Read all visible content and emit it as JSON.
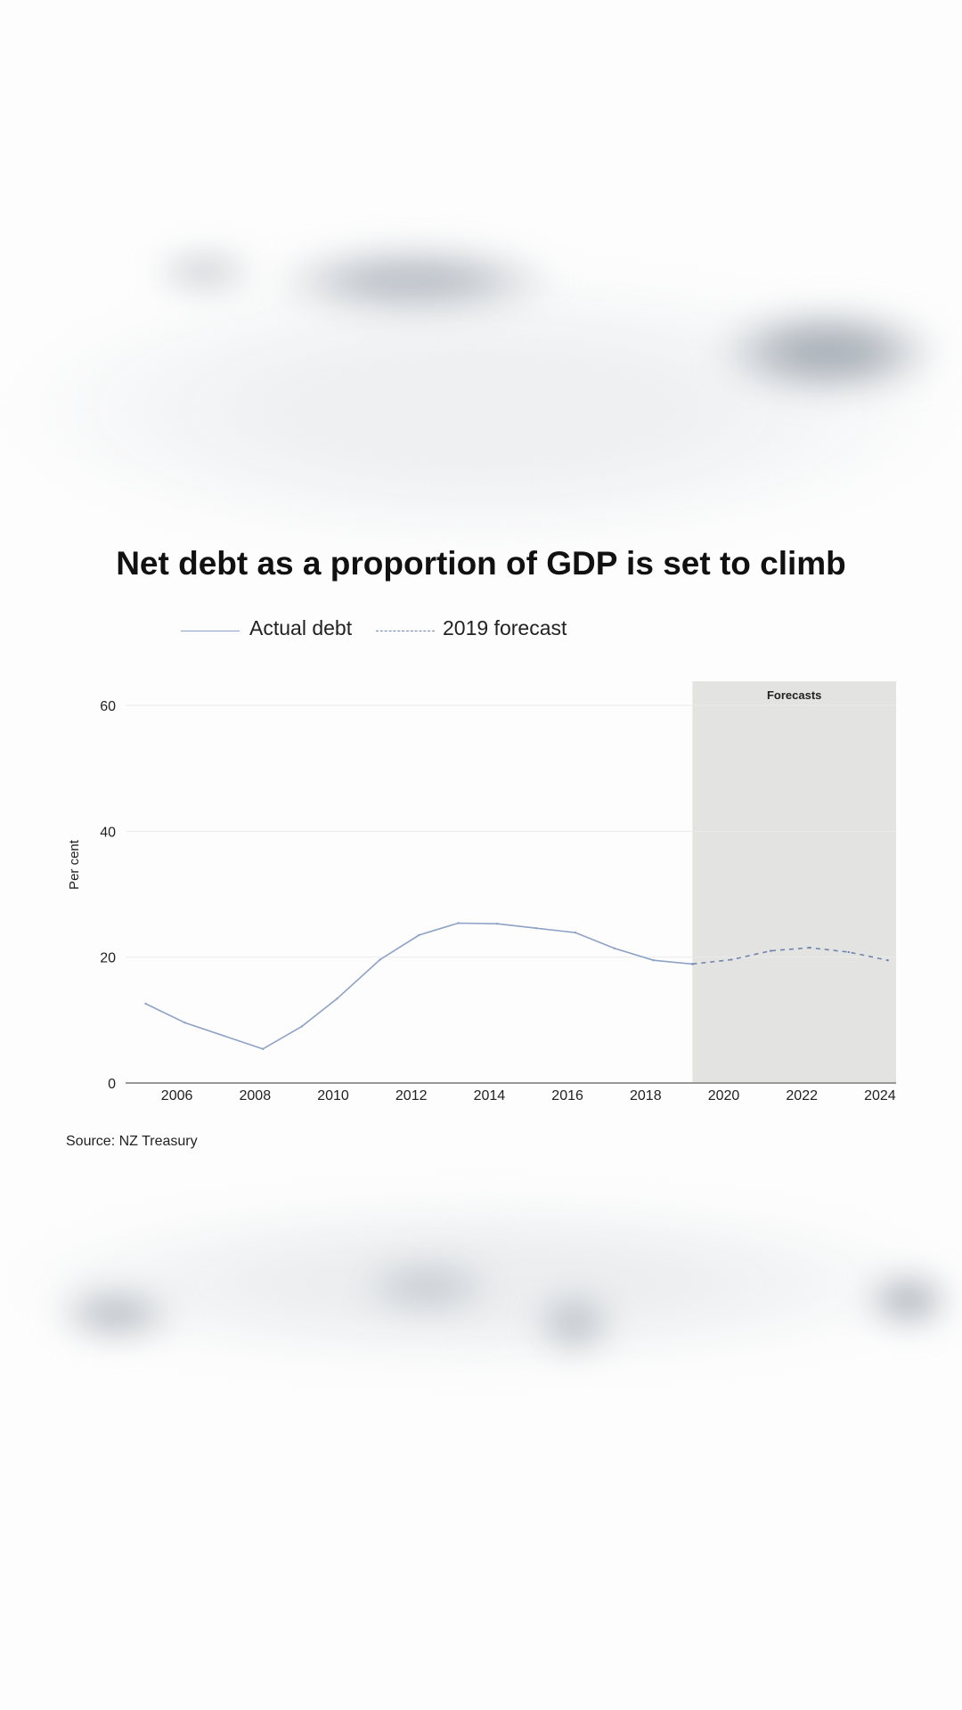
{
  "chart_data": {
    "type": "line",
    "title": "Net debt as a proportion of GDP is set to climb",
    "ylabel": "Per cent",
    "xlabel": "",
    "ylim": [
      0,
      60
    ],
    "xlim": [
      2005,
      2025
    ],
    "grid": true,
    "legend_position": "top-left",
    "y_ticks": [
      "0",
      "20",
      "40",
      "60"
    ],
    "x_ticks": [
      "2006",
      "2008",
      "2010",
      "2012",
      "2014",
      "2016",
      "2018",
      "2020",
      "2022",
      "2024"
    ],
    "shaded_region": {
      "label": "Forecasts",
      "from": 2019.2,
      "to": 2025,
      "color": "#e3e3e2"
    },
    "series": [
      {
        "name": "Actual debt",
        "style": "solid",
        "color": "#8ea2c6",
        "x": [
          2005.2,
          2006.2,
          2008.2,
          2009.2,
          2010.1,
          2011.2,
          2012.2,
          2013.2,
          2014.2,
          2015.2,
          2016.2,
          2017.2,
          2018.2,
          2019.2
        ],
        "y": [
          12.6,
          9.6,
          5.4,
          9.0,
          13.4,
          19.6,
          23.5,
          25.4,
          25.3,
          24.6,
          23.9,
          21.4,
          19.5,
          18.9
        ]
      },
      {
        "name": "2019 forecast",
        "style": "dashed",
        "color": "#6f86ad",
        "x": [
          2019.2,
          2020.2,
          2021.2,
          2022.2,
          2023.2,
          2024.2
        ],
        "y": [
          18.9,
          19.6,
          21.0,
          21.5,
          20.8,
          19.5
        ]
      }
    ],
    "source": "Source: NZ Treasury"
  }
}
